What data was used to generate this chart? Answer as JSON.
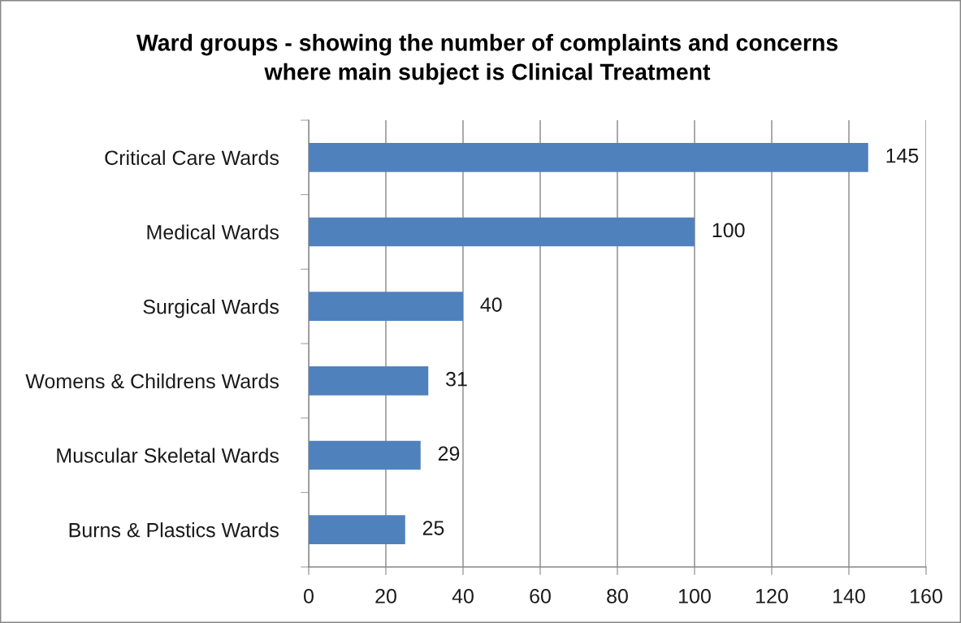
{
  "chart_data": {
    "type": "bar",
    "orientation": "horizontal",
    "title": "Ward groups - showing the number of complaints and concerns\nwhere main subject is Clinical Treatment",
    "categories": [
      "Critical Care Wards",
      "Medical Wards",
      "Surgical Wards",
      "Womens & Childrens Wards",
      "Muscular Skeletal Wards",
      "Burns & Plastics Wards"
    ],
    "values": [
      145,
      100,
      40,
      31,
      29,
      25
    ],
    "color": "#4f81bd",
    "xlim": [
      0,
      160
    ],
    "xticks": [
      0,
      20,
      40,
      60,
      80,
      100,
      120,
      140,
      160
    ],
    "grid": "x",
    "data_labels": true
  }
}
